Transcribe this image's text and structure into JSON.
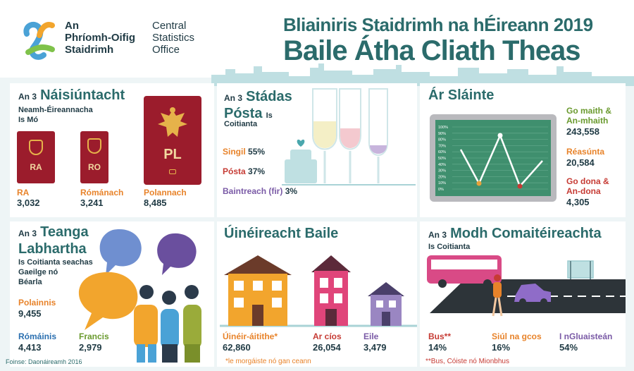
{
  "logo": {
    "irish_line1": "An",
    "irish_line2": "Phríomh-Oifig",
    "irish_line3": "Staidrimh",
    "english_line1": "Central",
    "english_line2": "Statistics",
    "english_line3": "Office"
  },
  "header": {
    "subtitle": "Bliainiris Staidrimh na hÉireann 2019",
    "title": "Baile Átha Cliath Theas"
  },
  "nationality": {
    "prefix": "An 3",
    "heading": "Náisiúntacht",
    "sub1": "Neamh-Éireannacha",
    "sub2": "Is Mó",
    "passports": [
      {
        "code": "RA",
        "label": "RA",
        "value": "3,032",
        "color": "#9b1c2c"
      },
      {
        "code": "RO",
        "label": "Rómánach",
        "value": "3,241",
        "color": "#9b1c2c"
      },
      {
        "code": "PL",
        "label": "Polannach",
        "value": "8,485",
        "color": "#9b1c2c"
      }
    ]
  },
  "marital": {
    "prefix": "An 3",
    "heading1": "Stádas",
    "heading2": "Pósta",
    "sub1": "Is",
    "sub2": "Coitianta",
    "items": [
      {
        "label": "Singil",
        "value": "55%"
      },
      {
        "label": "Pósta",
        "value": "37%"
      },
      {
        "label": "Baintreach (fir)",
        "value": "3%"
      }
    ]
  },
  "health": {
    "heading": "Ár Sláinte",
    "items": [
      {
        "label1": "Go maith &",
        "label2": "An-mhaith",
        "value": "243,558"
      },
      {
        "label1": "Réasúnta",
        "label2": "",
        "value": "20,584"
      },
      {
        "label1": "Go dona &",
        "label2": "An-dona",
        "value": "4,305"
      }
    ],
    "chart_ticks": [
      "100%",
      "90%",
      "80%",
      "70%",
      "60%",
      "50%",
      "40%",
      "30%",
      "20%",
      "10%",
      "0%"
    ]
  },
  "language": {
    "prefix": "An 3",
    "heading1": "Teanga",
    "heading2": "Labhartha",
    "sub1": "Is Coitianta seachas",
    "sub2": "Gaeilge nó",
    "sub3": "Béarla",
    "items": [
      {
        "label": "Polainnis",
        "value": "9,455"
      },
      {
        "label": "Rómáinis",
        "value": "4,413"
      },
      {
        "label": "Francis",
        "value": "2,979"
      }
    ],
    "source": "Foinse: Daonáireamh 2016"
  },
  "housing": {
    "heading": "Úinéireacht Baile",
    "items": [
      {
        "label": "Úinéir-áitithe*",
        "value": "62,860"
      },
      {
        "label": "Ar cíos",
        "value": "26,054"
      },
      {
        "label": "Eile",
        "value": "3,479"
      }
    ],
    "footnote": "*le morgáiste nó gan ceann"
  },
  "transport": {
    "prefix": "An 3",
    "heading": "Modh Comaitéireachta",
    "sub": "Is Coitianta",
    "items": [
      {
        "label": "Bus**",
        "value": "14%"
      },
      {
        "label": "Siúl na gcos",
        "value": "16%"
      },
      {
        "label": "I nGluaisteán",
        "value": "54%"
      }
    ],
    "footnote": "**Bus, Cóiste nó Mionbhus"
  }
}
